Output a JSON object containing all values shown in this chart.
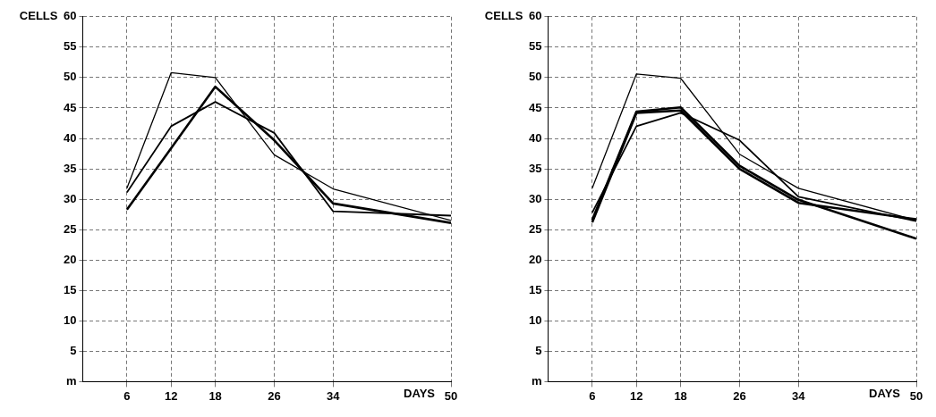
{
  "chart_data": [
    {
      "type": "line",
      "xlabel": "DAYS",
      "ylabel": "CELLS",
      "xlim": [
        0,
        50
      ],
      "xticks": [
        6,
        12,
        18,
        26,
        34,
        50
      ],
      "ylim": [
        0,
        60
      ],
      "yticks": [
        {
          "value": 0,
          "label": "m"
        },
        5,
        10,
        15,
        20,
        25,
        30,
        35,
        40,
        45,
        50,
        55,
        60
      ],
      "grid": true,
      "x": [
        6,
        12,
        18,
        26,
        34,
        50
      ],
      "series": [
        {
          "color": "#000000",
          "values": [
            31.8,
            50.8,
            50,
            37.3,
            31.7,
            26.5
          ]
        },
        {
          "color": "#000000",
          "values": [
            31.1,
            42,
            46,
            40.9,
            28,
            27.3
          ]
        },
        {
          "color": "#000000",
          "values": [
            28.3,
            38.4,
            48.5,
            39.7,
            29.3,
            26.1
          ]
        }
      ]
    },
    {
      "type": "line",
      "xlabel": "DAYS",
      "ylabel": "CELLS",
      "xlim": [
        0,
        50
      ],
      "xticks": [
        6,
        12,
        18,
        26,
        34,
        50
      ],
      "ylim": [
        0,
        60
      ],
      "yticks": [
        {
          "value": 0,
          "label": "m"
        },
        5,
        10,
        15,
        20,
        25,
        30,
        35,
        40,
        45,
        50,
        55,
        60
      ],
      "grid": true,
      "x": [
        6,
        12,
        18,
        26,
        34,
        50
      ],
      "series": [
        {
          "color": "#000000",
          "values": [
            31.8,
            50.6,
            49.9,
            37.4,
            31.8,
            26.5
          ]
        },
        {
          "color": "#000000",
          "values": [
            27.8,
            42,
            44.2,
            39.7,
            30.4,
            26.4
          ]
        },
        {
          "color": "#000000",
          "values": [
            26.6,
            44.4,
            45.1,
            35.5,
            29.9,
            23.5
          ]
        },
        {
          "color": "#000000",
          "values": [
            26.2,
            44.2,
            44.6,
            35,
            29.4,
            26.7
          ]
        }
      ]
    }
  ]
}
